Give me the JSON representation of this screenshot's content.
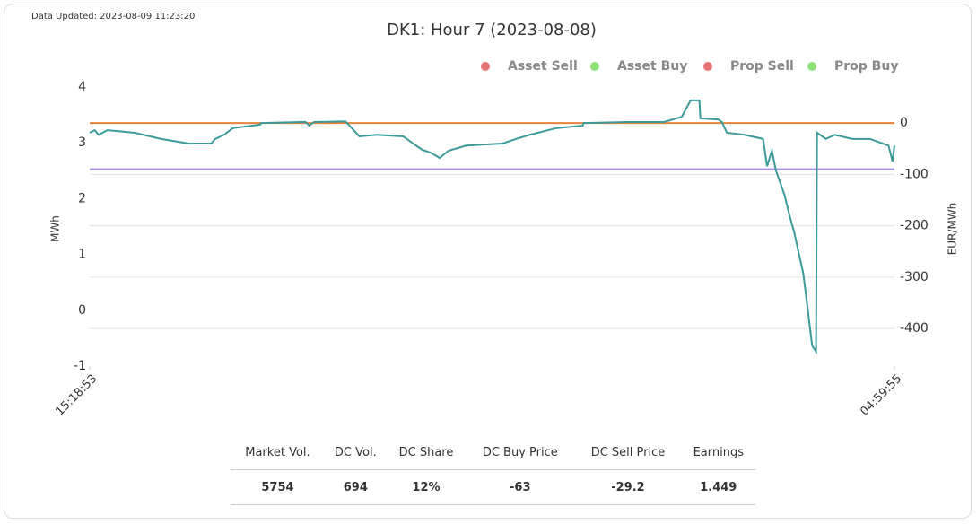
{
  "chart_data": {
    "type": "line",
    "updated": "Data Updated: 2023-08-09 11:23:20",
    "title": "DK1: Hour 7 (2023-08-08)",
    "ylabel": "MWh",
    "y2label": "EUR/MWh",
    "legend": [
      {
        "name": "Asset Sell",
        "color": "#e57373"
      },
      {
        "name": "Asset Buy",
        "color": "#8ee07a"
      },
      {
        "name": "Prop Sell",
        "color": "#e57373"
      },
      {
        "name": "Prop Buy",
        "color": "#8ee07a"
      }
    ],
    "line": {
      "color": "#3d9a9a",
      "axis": "y2",
      "x": [
        0,
        5,
        9,
        18,
        46,
        73,
        101,
        124,
        128,
        137,
        146,
        174,
        175,
        220,
        224,
        229,
        261,
        265,
        275,
        293,
        320,
        330,
        339,
        348,
        357,
        366,
        384,
        421,
        435,
        449,
        476,
        503,
        504,
        549,
        586,
        604,
        613,
        622,
        623,
        641,
        645,
        650,
        668,
        687,
        691,
        696,
        700,
        705,
        709,
        714,
        719,
        723,
        728,
        732,
        737,
        741,
        742,
        751,
        760,
        778,
        796,
        815,
        819,
        821
      ],
      "values": [
        -19,
        -14,
        -23,
        -14,
        -19,
        -31,
        -40,
        -40,
        -31,
        -23,
        -10,
        -3,
        0,
        2,
        -5,
        2,
        3,
        -5,
        -26,
        -23,
        -26,
        -40,
        -52,
        -58,
        -68,
        -54,
        -44,
        -40,
        -31,
        -23,
        -10,
        -5,
        0,
        2,
        2,
        12,
        44,
        44,
        9,
        7,
        2,
        -19,
        -23,
        -31,
        -84,
        -54,
        -92,
        -119,
        -141,
        -180,
        -215,
        -250,
        -293,
        -354,
        -433,
        -445,
        -19,
        -31,
        -23,
        -31,
        -31,
        -44,
        -75,
        -44
      ]
    },
    "hlines": [
      {
        "value": 0,
        "color": "#e8823a"
      },
      {
        "value": -90,
        "color": "#a68be8"
      }
    ],
    "xlim": [
      0,
      821
    ],
    "xticks": [
      {
        "value": 0,
        "label": "15:18:53"
      },
      {
        "value": 821,
        "label": "04:59:55"
      }
    ],
    "ylim": [
      -1,
      4
    ],
    "yticks": [
      -1,
      0,
      1,
      2,
      3,
      4
    ],
    "y2lim": [
      -473,
      70
    ],
    "y2ticks": [
      0,
      -100,
      -200,
      -300,
      -400
    ],
    "grid": true
  },
  "table": {
    "header": [
      "Market Vol.",
      "DC Vol.",
      "DC Share",
      "DC Buy Price",
      "DC Sell Price",
      "Earnings"
    ],
    "row": [
      "5754",
      "694",
      "12%",
      "-63",
      "-29.2",
      "1.449"
    ]
  }
}
